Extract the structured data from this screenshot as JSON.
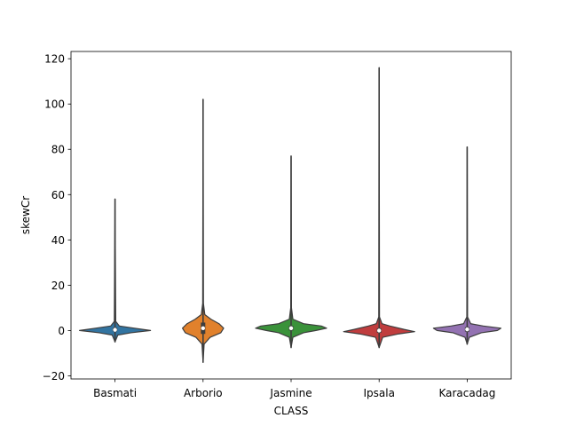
{
  "chart_data": {
    "type": "violin",
    "title": "",
    "xlabel": "CLASS",
    "ylabel": "skewCr",
    "ylim": [
      -21.4,
      123.2
    ],
    "yticks": [
      -20,
      0,
      20,
      40,
      60,
      80,
      100,
      120
    ],
    "grid": false,
    "categories": [
      "Basmati",
      "Arborio",
      "Jasmine",
      "Ipsala",
      "Karacadag"
    ],
    "series": [
      {
        "category": "Basmati",
        "color": "#3274a1",
        "min": -5,
        "max": 58,
        "q1": -0.4,
        "median": 0.3,
        "q3": 1.2,
        "profile": [
          [
            -5,
            0.0
          ],
          [
            -2,
            0.08
          ],
          [
            -1,
            0.45
          ],
          [
            0,
            1.0
          ],
          [
            1,
            0.55
          ],
          [
            2,
            0.12
          ],
          [
            4,
            0.02
          ],
          [
            58,
            0.0
          ]
        ]
      },
      {
        "category": "Arborio",
        "color": "#e1812c",
        "min": -14,
        "max": 102,
        "q1": -1.5,
        "median": 1.0,
        "q3": 3.5,
        "profile": [
          [
            -14,
            0.0
          ],
          [
            -6,
            0.03
          ],
          [
            -3,
            0.2
          ],
          [
            -1,
            0.5
          ],
          [
            1,
            0.58
          ],
          [
            3,
            0.45
          ],
          [
            5,
            0.22
          ],
          [
            7,
            0.05
          ],
          [
            12,
            0.01
          ],
          [
            102,
            0.0
          ]
        ]
      },
      {
        "category": "Jasmine",
        "color": "#3a923a",
        "min": -7.5,
        "max": 77,
        "q1": 0.0,
        "median": 1.0,
        "q3": 2.0,
        "profile": [
          [
            -7.5,
            0.0
          ],
          [
            -3,
            0.05
          ],
          [
            -1,
            0.35
          ],
          [
            0,
            0.7
          ],
          [
            1,
            1.0
          ],
          [
            2,
            0.85
          ],
          [
            3,
            0.35
          ],
          [
            5,
            0.05
          ],
          [
            10,
            0.01
          ],
          [
            77,
            0.0
          ]
        ]
      },
      {
        "category": "Ipsala",
        "color": "#c03d3e",
        "min": -7.5,
        "max": 116,
        "q1": -1.0,
        "median": 0.0,
        "q3": 1.0,
        "profile": [
          [
            -7.5,
            0.0
          ],
          [
            -3,
            0.1
          ],
          [
            -1.5,
            0.55
          ],
          [
            -0.5,
            1.0
          ],
          [
            0.5,
            0.7
          ],
          [
            2,
            0.3
          ],
          [
            3,
            0.08
          ],
          [
            6,
            0.01
          ],
          [
            116,
            0.0
          ]
        ]
      },
      {
        "category": "Karacadag",
        "color": "#9372b2",
        "min": -6,
        "max": 81,
        "q1": -0.5,
        "median": 0.5,
        "q3": 1.5,
        "profile": [
          [
            -6,
            0.0
          ],
          [
            -3,
            0.06
          ],
          [
            -1,
            0.4
          ],
          [
            0,
            0.85
          ],
          [
            1,
            0.95
          ],
          [
            2,
            0.45
          ],
          [
            3,
            0.1
          ],
          [
            6,
            0.01
          ],
          [
            81,
            0.0
          ]
        ]
      }
    ]
  }
}
